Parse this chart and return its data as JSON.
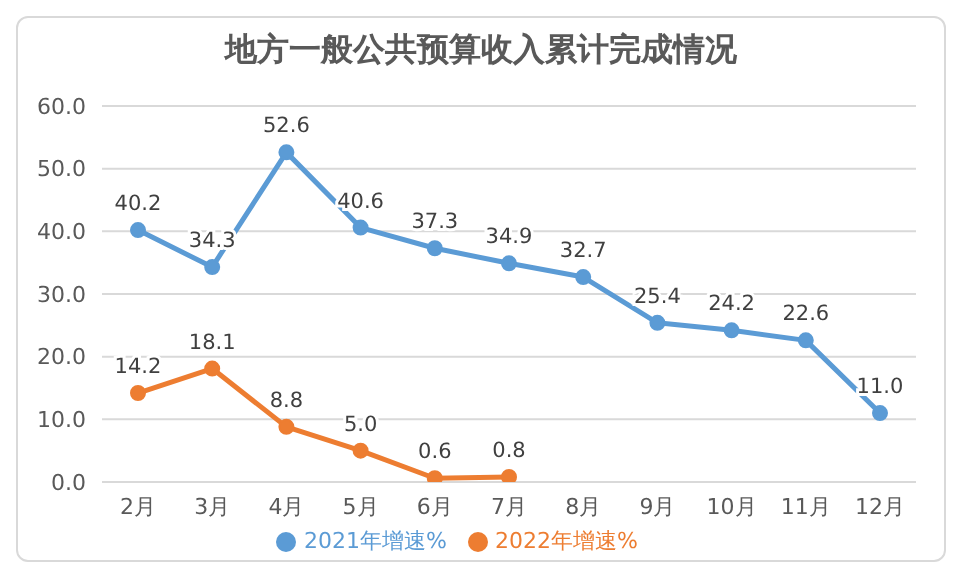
{
  "chart_data": {
    "type": "line",
    "title": "地方一般公共预算收入累计完成情况",
    "categories": [
      "2月",
      "3月",
      "4月",
      "5月",
      "6月",
      "7月",
      "8月",
      "9月",
      "10月",
      "11月",
      "12月"
    ],
    "series": [
      {
        "name": "2021年增速%",
        "color": "#5b9bd5",
        "values": [
          40.2,
          34.3,
          52.6,
          40.6,
          37.3,
          34.9,
          32.7,
          25.4,
          24.2,
          22.6,
          11.0
        ],
        "value_labels": [
          "40.2",
          "34.3",
          "52.6",
          "40.6",
          "37.3",
          "34.9",
          "32.7",
          "25.4",
          "24.2",
          "22.6",
          "11.0"
        ]
      },
      {
        "name": "2022年增速%",
        "color": "#ed7d31",
        "values": [
          14.2,
          18.1,
          8.8,
          5.0,
          0.6,
          0.8,
          null,
          null,
          null,
          null,
          null
        ],
        "value_labels": [
          "14.2",
          "18.1",
          "8.8",
          "5.0",
          "0.6",
          "0.8",
          null,
          null,
          null,
          null,
          null
        ]
      }
    ],
    "ylim": [
      0,
      60
    ],
    "yticks": [
      {
        "value": 0,
        "label": "0.0"
      },
      {
        "value": 10,
        "label": "10.0"
      },
      {
        "value": 20,
        "label": "20.0"
      },
      {
        "value": 30,
        "label": "30.0"
      },
      {
        "value": 40,
        "label": "40.0"
      },
      {
        "value": 50,
        "label": "50.0"
      },
      {
        "value": 60,
        "label": "60.0"
      }
    ],
    "grid": "y",
    "legend": "bottom",
    "marker": "circle",
    "line_style": "solid"
  }
}
